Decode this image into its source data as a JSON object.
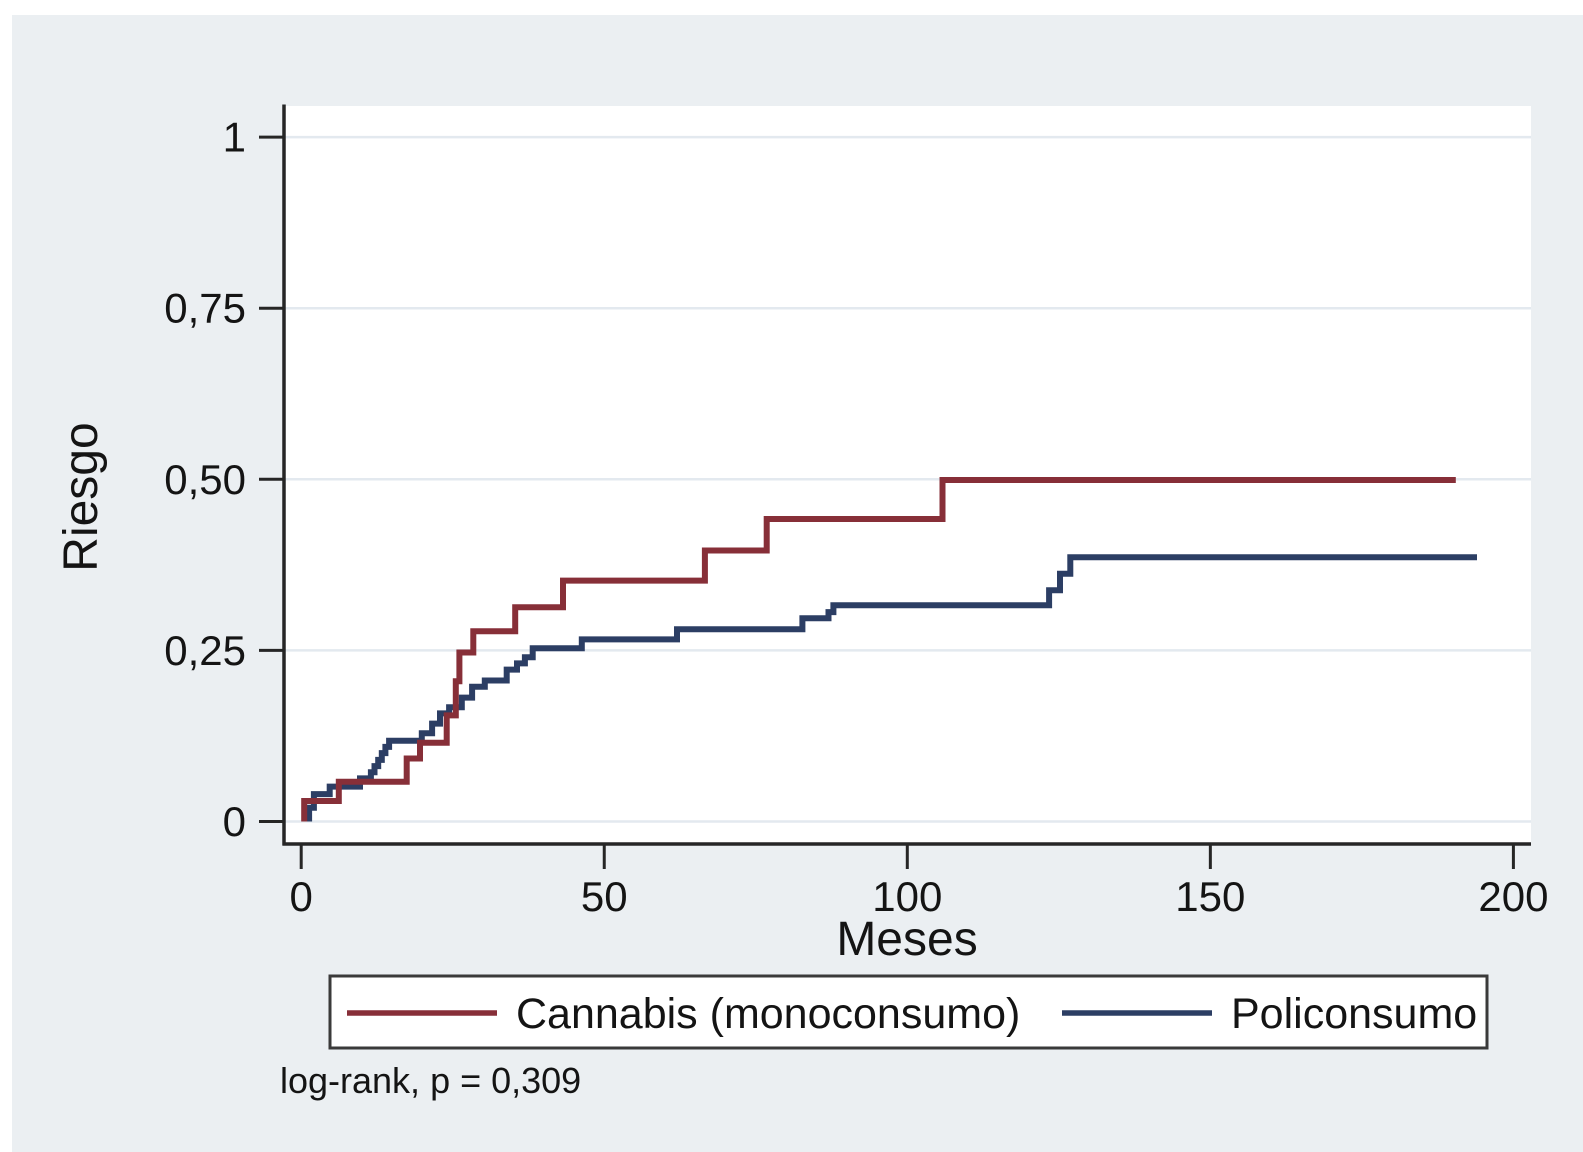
{
  "figure": {
    "page_margin_color": "#FFFFFF",
    "background_color": "#EBEFF2",
    "plot_background_color": "#FFFFFF"
  },
  "colors": {
    "axis": "#262626",
    "grid": "#E3E9EF",
    "text": "#141414",
    "legend_border": "#3A3A3A",
    "cannabis_red": "#872F38",
    "policonsumo_navy": "#2C3E64"
  },
  "chart_data": {
    "type": "line",
    "subtype": "kaplan-meier-cumulative-risk-step",
    "title": "",
    "xlabel": "Meses",
    "ylabel": "Riesgo",
    "xlim": [
      0,
      200
    ],
    "ylim": [
      0,
      1
    ],
    "grid": "horizontal",
    "legend_position": "bottom",
    "xticks": [
      {
        "value": 0,
        "label": "0"
      },
      {
        "value": 50,
        "label": "50"
      },
      {
        "value": 100,
        "label": "100"
      },
      {
        "value": 150,
        "label": "150"
      },
      {
        "value": 200,
        "label": "200"
      }
    ],
    "yticks": [
      {
        "value": 0,
        "label": "0"
      },
      {
        "value": 0.25,
        "label": "0,25"
      },
      {
        "value": 0.5,
        "label": "0,50"
      },
      {
        "value": 0.75,
        "label": "0,75"
      },
      {
        "value": 1,
        "label": "1"
      }
    ],
    "series": [
      {
        "name": "Cannabis (monoconsumo)",
        "color": "#872F38",
        "points": [
          [
            0.5,
            0
          ],
          [
            0.5,
            0.03
          ],
          [
            6.2,
            0.058
          ],
          [
            17.4,
            0.092
          ],
          [
            19.6,
            0.115
          ],
          [
            24,
            0.155
          ],
          [
            25.5,
            0.205
          ],
          [
            26.1,
            0.247
          ],
          [
            28.4,
            0.278
          ],
          [
            35.3,
            0.313
          ],
          [
            43.2,
            0.352
          ],
          [
            66.6,
            0.396
          ],
          [
            76.8,
            0.442
          ],
          [
            105.8,
            0.499
          ],
          [
            190.5,
            0.499
          ]
        ]
      },
      {
        "name": "Policonsumo",
        "color": "#2C3E64",
        "points": [
          [
            1.3,
            0
          ],
          [
            1.3,
            0.02
          ],
          [
            2.1,
            0.04
          ],
          [
            4.7,
            0.051
          ],
          [
            9.7,
            0.063
          ],
          [
            11.5,
            0.072
          ],
          [
            12.1,
            0.081
          ],
          [
            12.7,
            0.09
          ],
          [
            13.3,
            0.1
          ],
          [
            13.9,
            0.109
          ],
          [
            14.5,
            0.118
          ],
          [
            19.9,
            0.129
          ],
          [
            21.6,
            0.143
          ],
          [
            22.9,
            0.158
          ],
          [
            24.4,
            0.167
          ],
          [
            26.5,
            0.181
          ],
          [
            28.2,
            0.197
          ],
          [
            30.3,
            0.206
          ],
          [
            33.9,
            0.222
          ],
          [
            35.6,
            0.231
          ],
          [
            36.9,
            0.24
          ],
          [
            38.2,
            0.253
          ],
          [
            46.3,
            0.266
          ],
          [
            62,
            0.281
          ],
          [
            82.7,
            0.297
          ],
          [
            87,
            0.306
          ],
          [
            87.8,
            0.316
          ],
          [
            123.4,
            0.338
          ],
          [
            125.2,
            0.362
          ],
          [
            126.9,
            0.386
          ],
          [
            194,
            0.386
          ]
        ]
      }
    ],
    "footnote": "log-rank, p = 0,309"
  }
}
